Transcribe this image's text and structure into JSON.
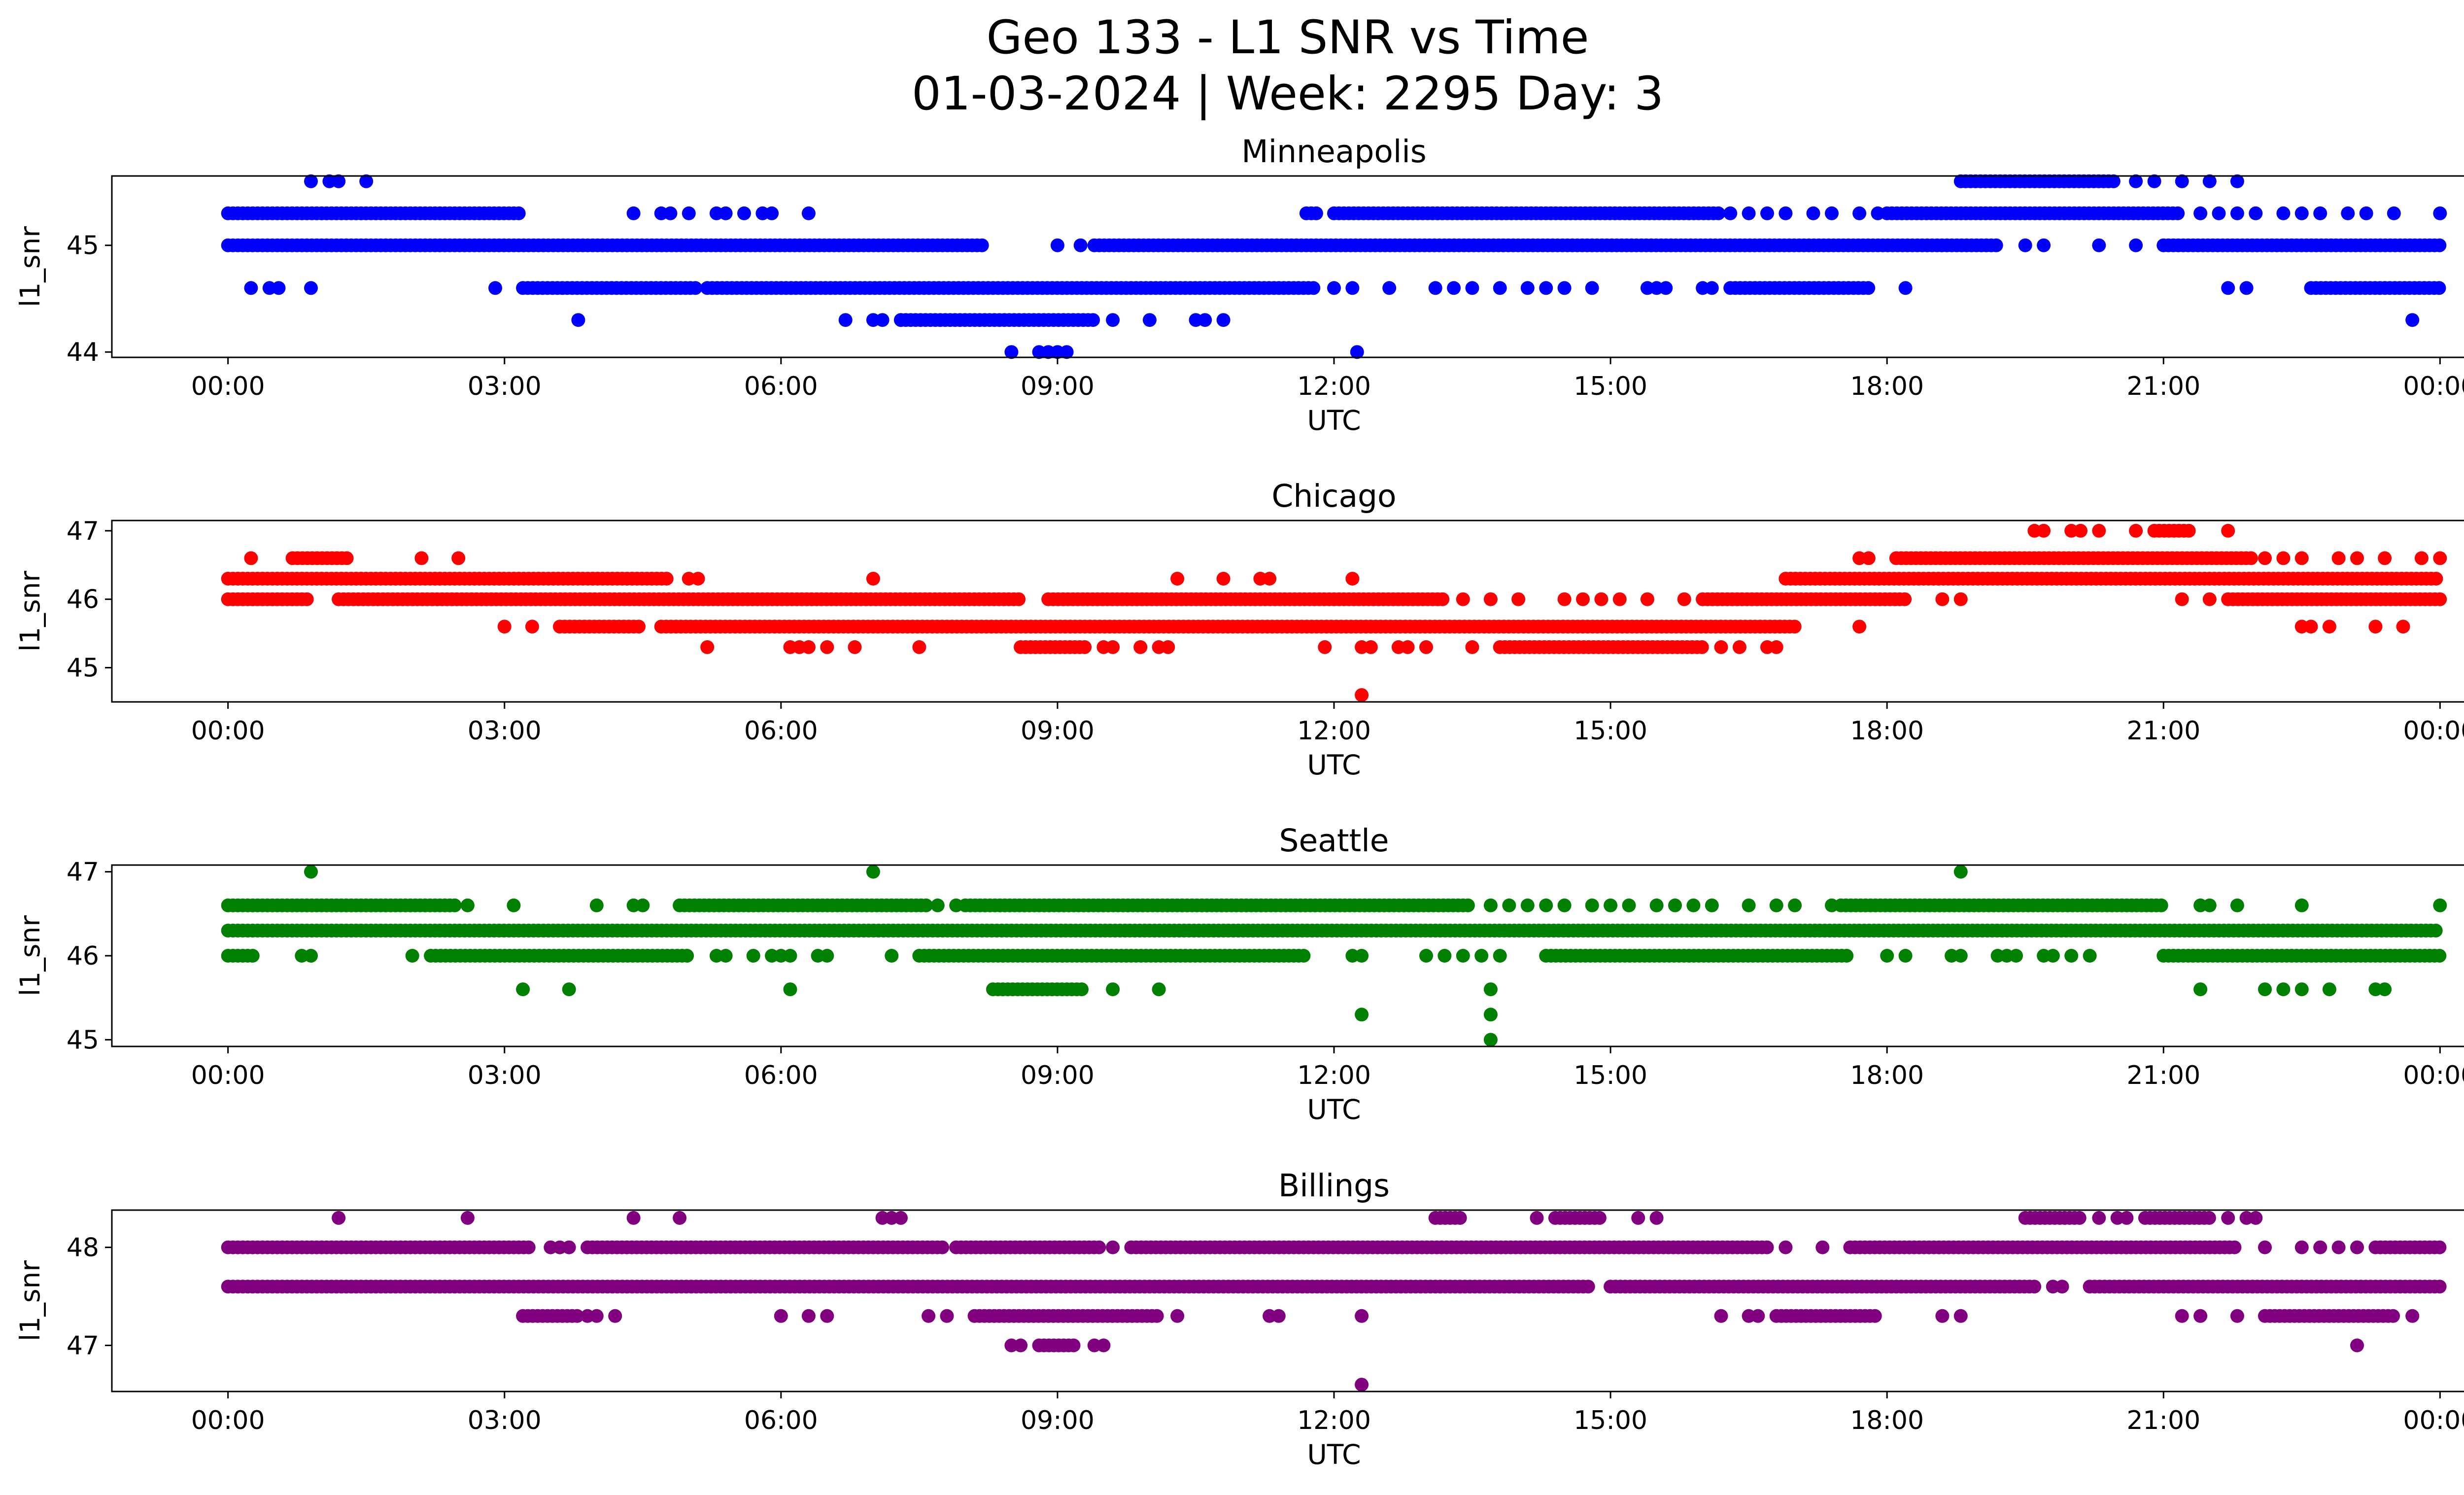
{
  "figure": {
    "title_line1": "Geo 133 - L1 SNR vs Time",
    "title_line2": "01-03-2024 | Week: 2295 Day: 3"
  },
  "chart_data": [
    {
      "type": "scatter",
      "title": "Minneapolis",
      "xlabel": "UTC",
      "ylabel": "l1_snr",
      "color": "#0000ff",
      "x_range_hours": [
        -1.26,
        25.26
      ],
      "ylim": [
        43.95,
        45.65
      ],
      "yticks": [
        44,
        45
      ],
      "ytick_labels": [
        "44",
        "45"
      ],
      "xticks": [
        0,
        3,
        6,
        9,
        12,
        15,
        18,
        21,
        24
      ],
      "xtick_labels": [
        "00:00",
        "03:00",
        "06:00",
        "09:00",
        "12:00",
        "15:00",
        "18:00",
        "21:00",
        "00:00"
      ],
      "levels": [
        {
          "y": 45.6,
          "segments": [
            [
              18.8,
              20.5
            ]
          ],
          "points": [
            0.9,
            1.1,
            1.2,
            1.5,
            20.7,
            20.9,
            21.2,
            21.5,
            21.8
          ]
        },
        {
          "y": 45.3,
          "segments": [
            [
              0,
              3.2
            ],
            [
              11.7,
              11.85
            ],
            [
              12.0,
              16.2
            ],
            [
              18.0,
              21.2
            ]
          ],
          "points": [
            4.4,
            4.7,
            4.8,
            5.0,
            5.3,
            5.4,
            5.6,
            5.8,
            5.9,
            6.3,
            16.3,
            16.5,
            16.7,
            16.9,
            17.2,
            17.4,
            17.7,
            17.9,
            21.4,
            21.6,
            21.8,
            22.0,
            22.3,
            22.5,
            22.7,
            23.0,
            23.2,
            23.5,
            24.0
          ]
        },
        {
          "y": 45.0,
          "segments": [
            [
              0,
              8.2
            ],
            [
              9.4,
              19.2
            ],
            [
              21.0,
              24.0
            ]
          ],
          "points": [
            9.0,
            9.25,
            19.5,
            19.7,
            20.3,
            20.7
          ]
        },
        {
          "y": 44.6,
          "segments": [
            [
              3.2,
              5.1
            ],
            [
              5.2,
              11.8
            ],
            [
              16.3,
              17.8
            ],
            [
              22.6,
              24.0
            ]
          ],
          "points": [
            0.25,
            0.45,
            0.55,
            0.9,
            2.9,
            12.0,
            12.2,
            12.6,
            13.1,
            13.3,
            13.5,
            13.8,
            14.1,
            14.3,
            14.5,
            14.8,
            15.4,
            15.5,
            15.6,
            16.0,
            16.1,
            18.2,
            21.7,
            21.9
          ]
        },
        {
          "y": 44.3,
          "segments": [
            [
              7.3,
              9.4
            ]
          ],
          "points": [
            3.8,
            6.7,
            7.0,
            7.1,
            7.3,
            9.6,
            10.0,
            10.5,
            10.6,
            10.8,
            23.7
          ]
        },
        {
          "y": 44.0,
          "segments": [],
          "points": [
            8.5,
            8.8,
            8.9,
            9.0,
            9.1,
            12.25
          ]
        }
      ]
    },
    {
      "type": "scatter",
      "title": "Chicago",
      "xlabel": "UTC",
      "ylabel": "l1_snr",
      "color": "#ff0000",
      "x_range_hours": [
        -1.26,
        25.26
      ],
      "ylim": [
        44.5,
        47.15
      ],
      "yticks": [
        45,
        46,
        47
      ],
      "ytick_labels": [
        "45",
        "46",
        "47"
      ],
      "xticks": [
        0,
        3,
        6,
        9,
        12,
        15,
        18,
        21,
        24
      ],
      "xtick_labels": [
        "00:00",
        "03:00",
        "06:00",
        "09:00",
        "12:00",
        "15:00",
        "18:00",
        "21:00",
        "00:00"
      ],
      "levels": [
        {
          "y": 47.0,
          "segments": [
            [
              20.9,
              21.3
            ]
          ],
          "points": [
            19.6,
            19.7,
            20.0,
            20.1,
            20.3,
            20.7,
            21.7
          ]
        },
        {
          "y": 46.6,
          "segments": [
            [
              0.7,
              1.3
            ],
            [
              18.1,
              22.0
            ]
          ],
          "points": [
            0.25,
            2.1,
            2.5,
            17.7,
            17.8,
            22.1,
            22.3,
            22.5,
            22.9,
            23.1,
            23.4,
            23.8,
            24.0
          ]
        },
        {
          "y": 46.3,
          "segments": [
            [
              0,
              4.8
            ],
            [
              16.9,
              24.0
            ]
          ],
          "points": [
            5.0,
            5.1,
            7.0,
            10.3,
            10.8,
            11.2,
            11.3,
            12.2
          ]
        },
        {
          "y": 46.0,
          "segments": [
            [
              0,
              0.9
            ],
            [
              1.2,
              8.6
            ],
            [
              8.9,
              13.2
            ],
            [
              16.0,
              18.2
            ],
            [
              21.7,
              24.0
            ]
          ],
          "points": [
            13.4,
            13.7,
            14.0,
            14.5,
            14.7,
            14.9,
            15.1,
            15.4,
            15.8,
            18.6,
            18.8,
            21.2,
            21.5
          ]
        },
        {
          "y": 45.6,
          "segments": [
            [
              3.6,
              4.5
            ],
            [
              4.7,
              17.0
            ]
          ],
          "points": [
            3.0,
            3.3,
            17.7,
            22.5,
            22.6,
            22.8,
            23.3,
            23.6
          ]
        },
        {
          "y": 45.3,
          "segments": [
            [
              8.6,
              9.3
            ],
            [
              13.8,
              16.0
            ]
          ],
          "points": [
            5.2,
            6.1,
            6.2,
            6.3,
            6.5,
            6.8,
            7.5,
            9.5,
            9.6,
            9.9,
            10.1,
            10.2,
            11.9,
            12.3,
            12.4,
            12.7,
            12.8,
            13.0,
            13.5,
            16.2,
            16.4,
            16.7,
            16.8
          ]
        },
        {
          "y": 44.6,
          "segments": [],
          "points": [
            12.3
          ]
        }
      ]
    },
    {
      "type": "scatter",
      "title": "Seattle",
      "xlabel": "UTC",
      "ylabel": "l1_snr",
      "color": "#008000",
      "x_range_hours": [
        -1.26,
        25.26
      ],
      "ylim": [
        44.92,
        47.08
      ],
      "yticks": [
        45,
        46,
        47
      ],
      "ytick_labels": [
        "45",
        "46",
        "47"
      ],
      "xticks": [
        0,
        3,
        6,
        9,
        12,
        15,
        18,
        21,
        24
      ],
      "xtick_labels": [
        "00:00",
        "03:00",
        "06:00",
        "09:00",
        "12:00",
        "15:00",
        "18:00",
        "21:00",
        "00:00"
      ],
      "levels": [
        {
          "y": 47.0,
          "segments": [],
          "points": [
            0.9,
            7.0,
            18.8
          ]
        },
        {
          "y": 46.6,
          "segments": [
            [
              0,
              2.5
            ],
            [
              4.9,
              7.6
            ],
            [
              8.0,
              13.5
            ],
            [
              17.5,
              21.0
            ]
          ],
          "points": [
            2.6,
            3.1,
            4.0,
            4.4,
            4.5,
            7.7,
            7.9,
            13.7,
            13.9,
            14.1,
            14.3,
            14.5,
            14.8,
            15.0,
            15.2,
            15.5,
            15.7,
            15.9,
            16.1,
            16.5,
            16.8,
            17.0,
            17.4,
            21.4,
            21.5,
            21.8,
            22.5,
            24.0
          ]
        },
        {
          "y": 46.3,
          "segments": [
            [
              0,
              24.0
            ]
          ],
          "points": []
        },
        {
          "y": 46.0,
          "segments": [
            [
              0,
              0.3
            ],
            [
              2.2,
              5.0
            ],
            [
              7.5,
              11.7
            ],
            [
              14.3,
              17.6
            ],
            [
              21.0,
              24.0
            ]
          ],
          "points": [
            0.8,
            0.9,
            2.0,
            5.3,
            5.4,
            5.7,
            5.9,
            6.0,
            6.1,
            6.4,
            6.5,
            7.2,
            12.2,
            12.3,
            13.0,
            13.2,
            13.4,
            13.6,
            13.8,
            18.0,
            18.2,
            18.7,
            18.8,
            19.2,
            19.3,
            19.4,
            19.7,
            19.8,
            20.0,
            20.2
          ]
        },
        {
          "y": 45.6,
          "segments": [
            [
              8.3,
              9.3
            ]
          ],
          "points": [
            3.2,
            3.7,
            6.1,
            9.6,
            10.1,
            13.7,
            21.4,
            22.1,
            22.3,
            22.5,
            22.8,
            23.3,
            23.4
          ]
        },
        {
          "y": 45.3,
          "segments": [],
          "points": [
            12.3,
            13.7
          ]
        },
        {
          "y": 45.0,
          "segments": [],
          "points": [
            13.7
          ]
        }
      ]
    },
    {
      "type": "scatter",
      "title": "Billings",
      "xlabel": "UTC",
      "ylabel": "l1_snr",
      "color": "#800080",
      "x_range_hours": [
        -1.26,
        25.26
      ],
      "ylim": [
        46.53,
        48.38
      ],
      "yticks": [
        47,
        48
      ],
      "ytick_labels": [
        "47",
        "48"
      ],
      "xticks": [
        0,
        3,
        6,
        9,
        12,
        15,
        18,
        21,
        24
      ],
      "xtick_labels": [
        "00:00",
        "03:00",
        "06:00",
        "09:00",
        "12:00",
        "15:00",
        "18:00",
        "21:00",
        "00:00"
      ],
      "levels": [
        {
          "y": 48.3,
          "segments": [
            [
              13.1,
              13.4
            ],
            [
              14.4,
              14.9
            ],
            [
              19.5,
              20.1
            ],
            [
              20.8,
              21.5
            ]
          ],
          "points": [
            1.2,
            2.6,
            4.4,
            4.9,
            7.1,
            7.2,
            7.3,
            14.2,
            15.3,
            15.5,
            20.3,
            20.5,
            20.6,
            21.7,
            21.9,
            22.0
          ]
        },
        {
          "y": 48.0,
          "segments": [
            [
              0,
              3.3
            ],
            [
              3.9,
              7.8
            ],
            [
              7.9,
              9.5
            ],
            [
              9.8,
              16.7
            ],
            [
              17.6,
              21.8
            ],
            [
              23.3,
              24.0
            ]
          ],
          "points": [
            3.5,
            3.6,
            3.7,
            9.6,
            16.9,
            17.3,
            22.1,
            22.5,
            22.7,
            22.9,
            23.1
          ]
        },
        {
          "y": 47.6,
          "segments": [
            [
              0,
              14.8
            ],
            [
              15.0,
              19.6
            ],
            [
              20.2,
              24.0
            ]
          ],
          "points": [
            19.8,
            19.9
          ]
        },
        {
          "y": 47.3,
          "segments": [
            [
              3.2,
              3.8
            ],
            [
              8.1,
              10.1
            ],
            [
              16.8,
              17.9
            ],
            [
              22.1,
              23.5
            ]
          ],
          "points": [
            3.9,
            4.0,
            4.2,
            6.0,
            6.3,
            6.5,
            7.6,
            7.8,
            10.3,
            11.3,
            11.4,
            12.3,
            16.2,
            16.5,
            16.6,
            18.6,
            18.8,
            21.2,
            21.4,
            21.8,
            23.7
          ]
        },
        {
          "y": 47.0,
          "segments": [
            [
              8.8,
              9.2
            ]
          ],
          "points": [
            8.5,
            8.6,
            9.4,
            9.5,
            23.1
          ]
        },
        {
          "y": 46.6,
          "segments": [],
          "points": [
            12.3
          ]
        }
      ]
    }
  ]
}
